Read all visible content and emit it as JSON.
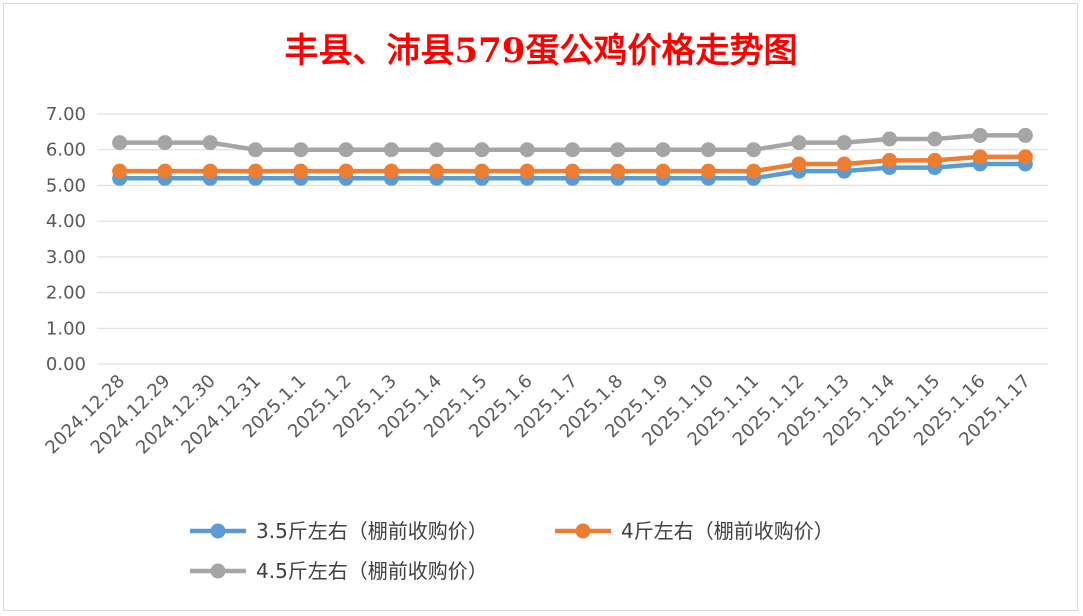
{
  "colors": {
    "series_1": "#5b9bd5",
    "series_2": "#ed7d31",
    "series_3": "#a5a5a5",
    "title": "#ff0000",
    "gridline": "#d9d9d9",
    "tick_text": "#595959"
  },
  "chart_data": {
    "type": "line",
    "title": "丰县、沛县579蛋公鸡价格走势图",
    "xlabel": "",
    "ylabel": "",
    "ylim": [
      0,
      7
    ],
    "y_ticks": [
      "0.00",
      "1.00",
      "2.00",
      "3.00",
      "4.00",
      "5.00",
      "6.00",
      "7.00"
    ],
    "grid": true,
    "legend_position": "bottom",
    "categories": [
      "2024.12.28",
      "2024.12.29",
      "2024.12.30",
      "2024.12.31",
      "2025.1.1",
      "2025.1.2",
      "2025.1.3",
      "2025.1.4",
      "2025.1.5",
      "2025.1.6",
      "2025.1.7",
      "2025.1.8",
      "2025.1.9",
      "2025.1.10",
      "2025.1.11",
      "2025.1.12",
      "2025.1.13",
      "2025.1.14",
      "2025.1.15",
      "2025.1.16",
      "2025.1.17"
    ],
    "series": [
      {
        "name": "3.5斤左右（棚前收购价）",
        "values": [
          5.2,
          5.2,
          5.2,
          5.2,
          5.2,
          5.2,
          5.2,
          5.2,
          5.2,
          5.2,
          5.2,
          5.2,
          5.2,
          5.2,
          5.2,
          5.4,
          5.4,
          5.5,
          5.5,
          5.6,
          5.6
        ]
      },
      {
        "name": "4斤左右（棚前收购价）",
        "values": [
          5.4,
          5.4,
          5.4,
          5.4,
          5.4,
          5.4,
          5.4,
          5.4,
          5.4,
          5.4,
          5.4,
          5.4,
          5.4,
          5.4,
          5.4,
          5.6,
          5.6,
          5.7,
          5.7,
          5.8,
          5.8
        ]
      },
      {
        "name": "4.5斤左右（棚前收购价）",
        "values": [
          6.2,
          6.2,
          6.2,
          6.0,
          6.0,
          6.0,
          6.0,
          6.0,
          6.0,
          6.0,
          6.0,
          6.0,
          6.0,
          6.0,
          6.0,
          6.2,
          6.2,
          6.3,
          6.3,
          6.4,
          6.4
        ]
      }
    ]
  }
}
